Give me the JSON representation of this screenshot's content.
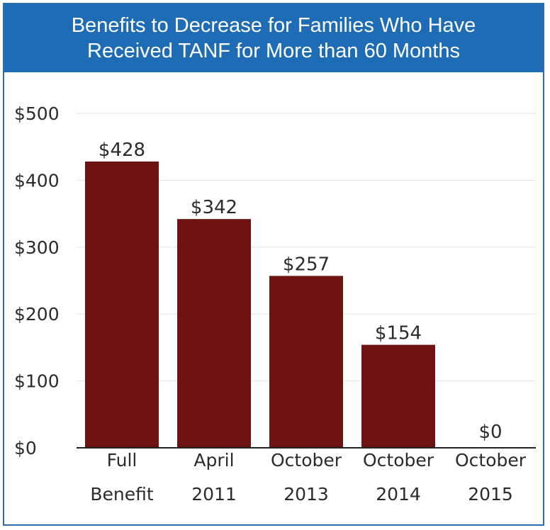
{
  "header": {
    "title_line1": "Benefits to Decrease for Families Who Have",
    "title_line2": "Received TANF for More than 60 Months"
  },
  "colors": {
    "header_bg": "#1e6cb5",
    "border": "#2a6db0",
    "bar": "#6e1212",
    "gridline": "#e3e3e3"
  },
  "chart_data": {
    "type": "bar",
    "categories": [
      [
        "Full",
        "Benefit"
      ],
      [
        "April",
        "2011"
      ],
      [
        "October",
        "2013"
      ],
      [
        "October",
        "2014"
      ],
      [
        "October",
        "2015"
      ]
    ],
    "values": [
      428,
      342,
      257,
      154,
      0
    ],
    "value_labels": [
      "$428",
      "$342",
      "$257",
      "$154",
      "$0"
    ],
    "ylim": [
      0,
      500
    ],
    "yticks": [
      0,
      100,
      200,
      300,
      400,
      500
    ],
    "ytick_labels": [
      "$0",
      "$100",
      "$200",
      "$300",
      "$400",
      "$500"
    ],
    "grid": true,
    "legend": "none"
  }
}
